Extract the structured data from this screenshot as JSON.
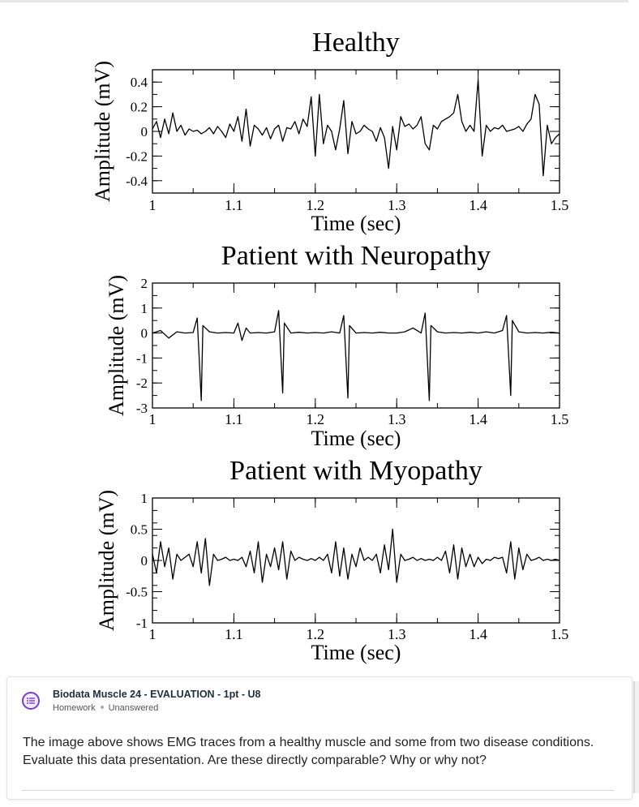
{
  "chart_data": [
    {
      "type": "line",
      "title": "Healthy",
      "xlabel": "Time (sec)",
      "ylabel": "Amplitude (mV)",
      "xlim": [
        1,
        1.5
      ],
      "ylim": [
        -0.5,
        0.5
      ],
      "xticks": [
        "1",
        "1.1",
        "1.2",
        "1.3",
        "1.4",
        "1.5"
      ],
      "yticks": [
        "0.4",
        "0.2",
        "0",
        "-0.2",
        "-0.4"
      ],
      "series": [
        {
          "name": "EMG",
          "x": [
            1.0,
            1.005,
            1.01,
            1.015,
            1.02,
            1.025,
            1.03,
            1.035,
            1.04,
            1.045,
            1.05,
            1.055,
            1.06,
            1.065,
            1.07,
            1.075,
            1.08,
            1.085,
            1.09,
            1.095,
            1.1,
            1.105,
            1.11,
            1.115,
            1.12,
            1.125,
            1.13,
            1.135,
            1.14,
            1.145,
            1.15,
            1.155,
            1.16,
            1.165,
            1.17,
            1.175,
            1.18,
            1.185,
            1.19,
            1.195,
            1.2,
            1.205,
            1.21,
            1.215,
            1.22,
            1.225,
            1.23,
            1.235,
            1.24,
            1.245,
            1.25,
            1.255,
            1.26,
            1.265,
            1.27,
            1.275,
            1.28,
            1.285,
            1.29,
            1.295,
            1.3,
            1.305,
            1.31,
            1.315,
            1.32,
            1.325,
            1.33,
            1.335,
            1.34,
            1.345,
            1.35,
            1.355,
            1.36,
            1.365,
            1.37,
            1.375,
            1.38,
            1.385,
            1.39,
            1.395,
            1.4,
            1.405,
            1.41,
            1.415,
            1.42,
            1.425,
            1.43,
            1.435,
            1.44,
            1.445,
            1.45,
            1.455,
            1.46,
            1.465,
            1.47,
            1.475,
            1.48,
            1.485,
            1.49,
            1.495,
            1.5
          ],
          "y": [
            0.02,
            0.08,
            -0.05,
            0.1,
            -0.02,
            0.15,
            0.0,
            0.05,
            -0.03,
            0.02,
            0.0,
            0.01,
            -0.02,
            0.0,
            0.03,
            -0.02,
            0.04,
            0.0,
            -0.05,
            0.06,
            0.0,
            0.12,
            -0.08,
            0.18,
            -0.12,
            0.05,
            0.02,
            -0.03,
            0.03,
            -0.06,
            0.02,
            0.05,
            -0.08,
            0.03,
            0.02,
            0.08,
            -0.02,
            0.1,
            0.04,
            0.28,
            -0.2,
            0.3,
            -0.1,
            0.05,
            0.0,
            -0.15,
            0.02,
            0.25,
            -0.18,
            0.08,
            -0.02,
            0.0,
            0.05,
            0.02,
            0.0,
            -0.08,
            0.03,
            -0.05,
            -0.3,
            0.04,
            -0.15,
            0.12,
            0.04,
            0.06,
            0.02,
            0.05,
            0.12,
            -0.1,
            -0.15,
            0.05,
            0.02,
            0.08,
            0.1,
            0.12,
            0.15,
            0.3,
            0.08,
            0.0,
            0.05,
            0.0,
            0.42,
            -0.2,
            0.05,
            0.0,
            0.03,
            0.02,
            0.05,
            0.0,
            0.01,
            0.02,
            0.04,
            0.0,
            0.06,
            0.1,
            0.3,
            0.22,
            -0.36,
            0.05,
            -0.1,
            -0.05,
            -0.02
          ]
        }
      ]
    },
    {
      "type": "line",
      "title": "Patient with Neuropathy",
      "xlabel": "Time (sec)",
      "ylabel": "Amplitude (mV)",
      "xlim": [
        1,
        1.5
      ],
      "ylim": [
        -3,
        2
      ],
      "xticks": [
        "1",
        "1.1",
        "1.2",
        "1.3",
        "1.4",
        "1.5"
      ],
      "yticks": [
        "2",
        "1",
        "0",
        "-1",
        "-2",
        "-3"
      ],
      "series": [
        {
          "name": "EMG",
          "x": [
            1.0,
            1.01,
            1.02,
            1.03,
            1.04,
            1.05,
            1.055,
            1.06,
            1.062,
            1.07,
            1.08,
            1.09,
            1.1,
            1.105,
            1.11,
            1.115,
            1.12,
            1.13,
            1.14,
            1.15,
            1.155,
            1.16,
            1.162,
            1.17,
            1.18,
            1.19,
            1.2,
            1.21,
            1.22,
            1.23,
            1.235,
            1.24,
            1.242,
            1.25,
            1.26,
            1.27,
            1.28,
            1.29,
            1.3,
            1.31,
            1.32,
            1.33,
            1.335,
            1.34,
            1.342,
            1.35,
            1.36,
            1.37,
            1.38,
            1.39,
            1.4,
            1.41,
            1.42,
            1.43,
            1.435,
            1.44,
            1.442,
            1.45,
            1.46,
            1.47,
            1.48,
            1.49,
            1.5
          ],
          "y": [
            0.0,
            0.1,
            -0.2,
            0.05,
            0.0,
            0.02,
            0.6,
            -2.7,
            0.3,
            0.05,
            0.0,
            0.02,
            0.0,
            0.4,
            -0.3,
            0.2,
            0.0,
            0.02,
            0.0,
            0.05,
            0.9,
            -2.4,
            0.4,
            0.0,
            0.03,
            0.0,
            0.02,
            0.0,
            0.05,
            0.0,
            0.7,
            -2.6,
            0.3,
            0.0,
            0.02,
            0.0,
            0.03,
            0.0,
            0.0,
            0.05,
            0.2,
            0.0,
            0.8,
            -2.7,
            0.3,
            0.05,
            0.0,
            0.02,
            0.0,
            0.03,
            0.0,
            0.05,
            0.0,
            0.1,
            0.7,
            -2.5,
            0.5,
            0.05,
            0.0,
            0.02,
            0.0,
            0.03,
            0.0
          ]
        }
      ]
    },
    {
      "type": "line",
      "title": "Patient with Myopathy",
      "xlabel": "Time (sec)",
      "ylabel": "Amplitude (mV)",
      "xlim": [
        1,
        1.5
      ],
      "ylim": [
        -1,
        1
      ],
      "xticks": [
        "1",
        "1.1",
        "1.2",
        "1.3",
        "1.4",
        "1.5"
      ],
      "yticks": [
        "1",
        "0.5",
        "0",
        "-0.5",
        "-1"
      ],
      "series": [
        {
          "name": "EMG",
          "x": [
            1.0,
            1.005,
            1.01,
            1.015,
            1.02,
            1.025,
            1.03,
            1.035,
            1.04,
            1.045,
            1.05,
            1.055,
            1.06,
            1.065,
            1.07,
            1.075,
            1.08,
            1.085,
            1.09,
            1.095,
            1.1,
            1.105,
            1.11,
            1.115,
            1.12,
            1.125,
            1.13,
            1.135,
            1.14,
            1.145,
            1.15,
            1.155,
            1.16,
            1.165,
            1.17,
            1.175,
            1.18,
            1.185,
            1.19,
            1.195,
            1.2,
            1.205,
            1.21,
            1.215,
            1.22,
            1.225,
            1.23,
            1.235,
            1.24,
            1.245,
            1.25,
            1.255,
            1.26,
            1.265,
            1.27,
            1.275,
            1.28,
            1.285,
            1.29,
            1.295,
            1.3,
            1.305,
            1.31,
            1.315,
            1.32,
            1.325,
            1.33,
            1.335,
            1.34,
            1.345,
            1.35,
            1.355,
            1.36,
            1.365,
            1.37,
            1.375,
            1.38,
            1.385,
            1.39,
            1.395,
            1.4,
            1.405,
            1.41,
            1.415,
            1.42,
            1.425,
            1.43,
            1.435,
            1.44,
            1.445,
            1.45,
            1.455,
            1.46,
            1.465,
            1.47,
            1.475,
            1.48,
            1.485,
            1.49,
            1.495,
            1.5
          ],
          "y": [
            0.1,
            -0.2,
            0.3,
            -0.1,
            0.2,
            -0.3,
            0.1,
            0.0,
            0.05,
            0.1,
            -0.1,
            0.3,
            -0.2,
            0.35,
            -0.4,
            0.1,
            0.0,
            0.02,
            0.05,
            0.0,
            0.02,
            0.0,
            0.05,
            -0.1,
            0.15,
            -0.2,
            0.3,
            -0.35,
            0.1,
            -0.1,
            0.2,
            -0.15,
            0.3,
            -0.3,
            0.15,
            0.0,
            0.05,
            0.02,
            0.0,
            0.03,
            0.0,
            0.05,
            0.0,
            0.1,
            -0.2,
            0.3,
            -0.25,
            0.2,
            -0.3,
            0.1,
            -0.1,
            0.2,
            0.0,
            0.05,
            0.0,
            0.1,
            -0.2,
            0.25,
            -0.15,
            0.5,
            -0.35,
            0.1,
            0.0,
            0.02,
            0.05,
            0.0,
            0.03,
            0.0,
            0.02,
            0.0,
            0.05,
            0.0,
            0.15,
            -0.2,
            0.25,
            -0.3,
            0.2,
            -0.1,
            0.1,
            -0.1,
            0.05,
            -0.05,
            0.02,
            0.0,
            0.05,
            0.03,
            0.05,
            -0.2,
            0.3,
            -0.3,
            0.2,
            -0.15,
            0.1,
            0.0,
            0.02,
            0.05,
            0.0,
            0.02,
            0.0,
            0.02,
            0.0
          ]
        }
      ]
    }
  ],
  "homework": {
    "title": "Biodata Muscle 24 - EVALUATION - 1pt - U8",
    "type": "Homework",
    "status": "Unanswered",
    "question": "The image above shows EMG traces from a healthy muscle and some from two disease conditions. Evaluate this data presentation. Are these directly comparable? Why or why not?"
  },
  "icons": {
    "homework": "homework-list-icon"
  },
  "colors": {
    "accent": "#7a3cd3"
  }
}
